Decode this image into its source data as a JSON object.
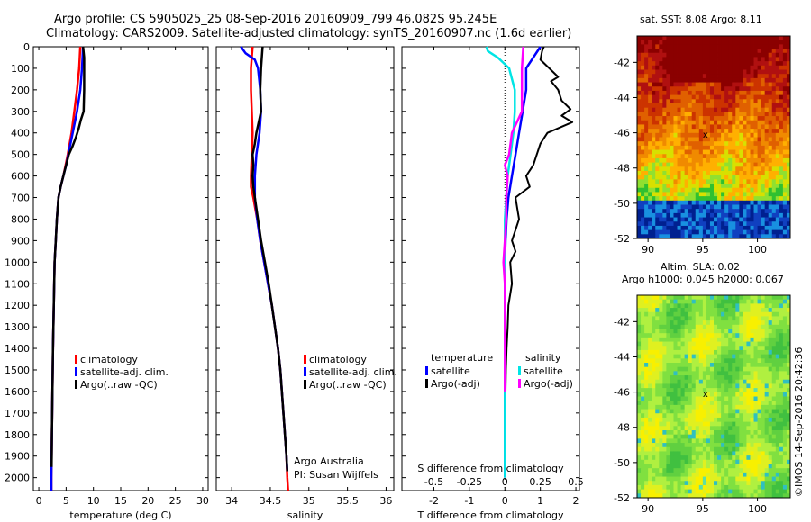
{
  "header": {
    "line1": "Argo profile: CS 5905025_25 08-Sep-2016 20160909_799 46.082S 95.245E",
    "line2": "Climatology: CARS2009. Satellite-adjusted climatology: synTS_20160907.nc (1.6d earlier)"
  },
  "colors": {
    "climatology": "#ff0000",
    "satellite": "#0000ff",
    "argo": "#000000",
    "salinity_satellite": "#00e5e5",
    "salinity_argo": "#ff00ff"
  },
  "legend": {
    "climatology": "climatology",
    "satellite_adj": "satellite-adj. clim.",
    "argo_raw": "Argo(..raw -QC)",
    "temperature_head": "temperature",
    "salinity_head": "salinity",
    "satellite": "satellite",
    "argo_adj": "Argo(-adj)"
  },
  "footer": {
    "argo_australia": "Argo Australia",
    "pi": "PI: Susan Wijffels",
    "imos": "©IMOS 14-Sep-2016 20:42:36"
  },
  "maps": {
    "sst_title": "sat. SST: 8.08 Argo: 8.11",
    "sla_title1": "Altim. SLA: 0.02",
    "sla_title2": "Argo h1000: 0.045 h2000: 0.067",
    "lat_ticks": [
      "-42",
      "-44",
      "-46",
      "-48",
      "-50",
      "-52"
    ],
    "lon_ticks": [
      "90",
      "95",
      "100"
    ],
    "profile_location_mark": "x"
  },
  "chart_data": [
    {
      "type": "line",
      "xlabel": "temperature (deg C)",
      "ylabel": "",
      "xlim": [
        -1,
        31
      ],
      "ylim": [
        2060,
        0
      ],
      "xticks": [
        0,
        5,
        10,
        15,
        20,
        25,
        30
      ],
      "yticks": [
        0,
        100,
        200,
        300,
        400,
        500,
        600,
        700,
        800,
        900,
        1000,
        1100,
        1200,
        1300,
        1400,
        1500,
        1600,
        1700,
        1800,
        1900,
        2000
      ],
      "series": [
        {
          "name": "climatology",
          "depth": [
            0,
            100,
            200,
            300,
            400,
            500,
            550,
            600,
            650,
            700,
            800,
            900,
            1000,
            1200,
            1400,
            1600,
            1800,
            1900,
            2000,
            2060
          ],
          "values": [
            7.6,
            7.4,
            7.0,
            6.5,
            6.0,
            5.3,
            4.9,
            4.5,
            4.0,
            3.6,
            3.3,
            3.1,
            2.9,
            2.75,
            2.6,
            2.5,
            2.4,
            2.35,
            2.3,
            2.3
          ]
        },
        {
          "name": "satellite-adj. clim.",
          "depth": [
            0,
            100,
            200,
            300,
            400,
            500,
            550,
            600,
            650,
            700,
            800,
            900,
            1000,
            1200,
            1400,
            1600,
            1800,
            1900,
            2000,
            2060
          ],
          "values": [
            8.1,
            7.9,
            7.6,
            7.0,
            6.2,
            5.4,
            5.0,
            4.5,
            4.0,
            3.6,
            3.3,
            3.1,
            2.9,
            2.75,
            2.6,
            2.5,
            2.4,
            2.35,
            2.3,
            2.3
          ]
        },
        {
          "name": "Argo(..raw -QC)",
          "depth": [
            0,
            50,
            100,
            200,
            300,
            340,
            380,
            420,
            460,
            500,
            550,
            600,
            650,
            700,
            800,
            900,
            1000,
            1200,
            1400,
            1600,
            1800,
            1950
          ],
          "values": [
            8.1,
            8.3,
            8.3,
            8.3,
            8.2,
            7.7,
            7.3,
            6.8,
            6.2,
            5.5,
            5.0,
            4.5,
            4.0,
            3.6,
            3.3,
            3.1,
            2.9,
            2.75,
            2.6,
            2.5,
            2.4,
            2.35
          ]
        }
      ]
    },
    {
      "type": "line",
      "xlabel": "salinity",
      "ylabel": "",
      "xlim": [
        33.8,
        36.1
      ],
      "ylim": [
        2060,
        0
      ],
      "xticks": [
        34,
        34.5,
        35,
        35.5,
        36
      ],
      "series": [
        {
          "name": "climatology",
          "depth": [
            0,
            50,
            100,
            200,
            300,
            400,
            500,
            600,
            650,
            700,
            800,
            900,
            1000,
            1100,
            1200,
            1300,
            1400,
            1500,
            1600,
            1700,
            1800,
            1900,
            2000,
            2060
          ],
          "values": [
            34.27,
            34.26,
            34.25,
            34.25,
            34.26,
            34.27,
            34.26,
            34.25,
            34.25,
            34.28,
            34.33,
            34.37,
            34.42,
            34.47,
            34.52,
            34.56,
            34.6,
            34.63,
            34.65,
            34.67,
            34.69,
            34.71,
            34.72,
            34.73
          ]
        },
        {
          "name": "satellite-adj. clim.",
          "depth": [
            0,
            30,
            60,
            100,
            200,
            300,
            400,
            500,
            600,
            700,
            800,
            900,
            1000,
            1100,
            1200,
            1300,
            1400,
            1500,
            1600,
            1700,
            1800,
            1900,
            1970
          ],
          "values": [
            34.12,
            34.18,
            34.3,
            34.34,
            34.37,
            34.38,
            34.36,
            34.32,
            34.3,
            34.3,
            34.33,
            34.37,
            34.42,
            34.47,
            34.52,
            34.56,
            34.6,
            34.63,
            34.65,
            34.67,
            34.69,
            34.71,
            34.72
          ]
        },
        {
          "name": "Argo(..raw -QC)",
          "depth": [
            0,
            100,
            200,
            300,
            350,
            400,
            450,
            500,
            550,
            600,
            650,
            700,
            800,
            900,
            1000,
            1100,
            1200,
            1300,
            1400,
            1500,
            1600,
            1700,
            1800,
            1900,
            1970
          ],
          "values": [
            34.4,
            34.38,
            34.37,
            34.38,
            34.35,
            34.32,
            34.3,
            34.27,
            34.28,
            34.27,
            34.28,
            34.3,
            34.34,
            34.38,
            34.43,
            34.48,
            34.52,
            34.56,
            34.6,
            34.63,
            34.65,
            34.67,
            34.69,
            34.71,
            34.72
          ]
        }
      ]
    },
    {
      "type": "line",
      "xlabel": "T difference from climatology",
      "x2label": "S difference from climatology",
      "xlim": [
        -2.9,
        2.1
      ],
      "ylim": [
        2060,
        0
      ],
      "xticks": [
        -2,
        -1,
        0,
        1,
        2
      ],
      "x2ticks": [
        -0.5,
        -0.25,
        0,
        0.25,
        0.5
      ],
      "series": [
        {
          "name": "temperature satellite",
          "depth": [
            0,
            100,
            200,
            300,
            400,
            500,
            600,
            700,
            800,
            900,
            1000,
            1200,
            1400,
            1600,
            1800,
            2000
          ],
          "values": [
            1.0,
            0.6,
            0.6,
            0.5,
            0.4,
            0.3,
            0.2,
            0.1,
            0.05,
            0.02,
            0,
            0,
            0,
            0,
            0,
            0
          ]
        },
        {
          "name": "temperature Argo(-adj)",
          "depth": [
            0,
            20,
            60,
            100,
            140,
            160,
            200,
            250,
            290,
            320,
            350,
            400,
            450,
            500,
            550,
            600,
            650,
            700,
            750,
            800,
            850,
            900,
            950,
            1000,
            1100,
            1200,
            1300,
            1400,
            1500,
            1600,
            1700,
            1800,
            1900,
            1950
          ],
          "values": [
            1.1,
            1.05,
            1.0,
            1.25,
            1.5,
            1.3,
            1.5,
            1.6,
            1.85,
            1.6,
            1.9,
            1.2,
            1.0,
            0.9,
            0.8,
            0.6,
            0.7,
            0.3,
            0.35,
            0.4,
            0.3,
            0.2,
            0.3,
            0.15,
            0.2,
            0.1,
            0.08,
            0.05,
            0.03,
            0.02,
            0.02,
            0.01,
            0.01,
            0
          ]
        },
        {
          "name": "salinity satellite",
          "depth": [
            0,
            20,
            50,
            100,
            200,
            300,
            400,
            500,
            600,
            700,
            800,
            900,
            1000,
            1200,
            1400,
            1600,
            1800,
            2000
          ],
          "values": [
            -0.13,
            -0.12,
            -0.05,
            0.03,
            0.07,
            0.07,
            0.06,
            0.04,
            0.02,
            0.01,
            0,
            0,
            0,
            0,
            0,
            0,
            0,
            0
          ]
        },
        {
          "name": "salinity Argo(-adj)",
          "depth": [
            0,
            100,
            200,
            300,
            400,
            500,
            550,
            600,
            700,
            800,
            900,
            1000,
            1100,
            1200,
            1300,
            1400,
            1500,
            1600
          ],
          "values": [
            0.13,
            0.12,
            0.12,
            0.12,
            0.05,
            0.03,
            0,
            0.02,
            0.01,
            0.01,
            0,
            -0.01,
            0,
            0,
            0,
            0,
            0,
            0
          ]
        }
      ]
    }
  ]
}
